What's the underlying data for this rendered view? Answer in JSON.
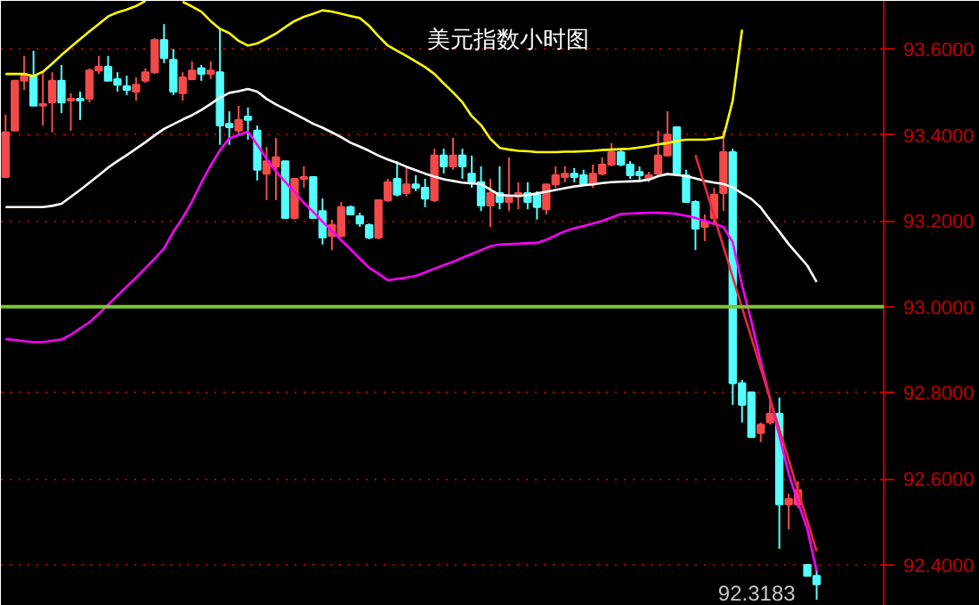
{
  "chart_data": {
    "type": "candlestick",
    "title": "美元指数小时图",
    "categories": [
      null,
      null,
      null,
      null,
      null,
      null,
      null,
      null,
      null,
      null,
      null,
      null,
      null,
      null,
      null,
      null,
      null,
      null,
      null,
      null,
      null,
      null,
      null,
      null,
      null,
      null,
      null,
      null,
      null,
      null,
      null,
      null,
      null,
      null,
      null,
      null,
      null,
      null,
      null,
      null,
      null,
      null,
      null,
      null,
      null,
      null,
      null,
      null,
      null,
      null,
      null,
      null,
      null,
      null,
      null,
      null,
      null,
      null,
      null,
      null,
      null,
      null,
      null,
      null,
      null,
      null,
      null,
      null,
      null,
      null,
      null,
      null,
      null,
      null,
      null,
      null,
      null,
      null,
      null,
      null,
      null,
      null,
      null,
      null,
      null,
      null,
      null,
      null
    ],
    "ohlc": [
      [
        93.302,
        93.447,
        93.302,
        93.406
      ],
      [
        93.41,
        93.526,
        93.41,
        93.526
      ],
      [
        93.526,
        93.584,
        93.505,
        93.538
      ],
      [
        93.538,
        93.596,
        93.468,
        93.468
      ],
      [
        93.468,
        93.546,
        93.422,
        93.472
      ],
      [
        93.476,
        93.546,
        93.406,
        93.526
      ],
      [
        93.526,
        93.563,
        93.451,
        93.476
      ],
      [
        93.48,
        93.497,
        93.41,
        93.484
      ],
      [
        93.484,
        93.501,
        93.435,
        93.48
      ],
      [
        93.484,
        93.555,
        93.476,
        93.55
      ],
      [
        93.55,
        93.584,
        93.542,
        93.559
      ],
      [
        93.559,
        93.584,
        93.526,
        93.526
      ],
      [
        93.53,
        93.546,
        93.501,
        93.517
      ],
      [
        93.513,
        93.538,
        93.493,
        93.505
      ],
      [
        93.501,
        93.534,
        93.48,
        93.517
      ],
      [
        93.526,
        93.555,
        93.521,
        93.546
      ],
      [
        93.546,
        93.625,
        93.542,
        93.621
      ],
      [
        93.621,
        93.658,
        93.567,
        93.579
      ],
      [
        93.575,
        93.6,
        93.493,
        93.501
      ],
      [
        93.497,
        93.546,
        93.48,
        93.534
      ],
      [
        93.53,
        93.571,
        93.53,
        93.55
      ],
      [
        93.555,
        93.563,
        93.526,
        93.542
      ],
      [
        93.542,
        93.571,
        93.53,
        93.55
      ],
      [
        93.546,
        93.646,
        93.377,
        93.422
      ],
      [
        93.426,
        93.455,
        93.377,
        93.418
      ],
      [
        93.41,
        93.468,
        93.401,
        93.435
      ],
      [
        93.443,
        93.464,
        93.389,
        93.435
      ],
      [
        93.41,
        93.422,
        93.294,
        93.319
      ],
      [
        93.31,
        93.372,
        93.248,
        93.339
      ],
      [
        93.327,
        93.393,
        93.248,
        93.348
      ],
      [
        93.339,
        93.339,
        93.207,
        93.207
      ],
      [
        93.207,
        93.298,
        93.203,
        93.298
      ],
      [
        93.298,
        93.327,
        93.277,
        93.302
      ],
      [
        93.302,
        93.302,
        93.207,
        93.207
      ],
      [
        93.223,
        93.252,
        93.145,
        93.161
      ],
      [
        93.165,
        93.203,
        93.132,
        93.19
      ],
      [
        93.165,
        93.244,
        93.161,
        93.232
      ],
      [
        93.232,
        93.236,
        93.215,
        93.215
      ],
      [
        93.211,
        93.219,
        93.186,
        93.194
      ],
      [
        93.19,
        93.194,
        93.157,
        93.161
      ],
      [
        93.161,
        93.248,
        93.157,
        93.248
      ],
      [
        93.248,
        93.298,
        93.244,
        93.29
      ],
      [
        93.298,
        93.339,
        93.257,
        93.261
      ],
      [
        93.265,
        93.327,
        93.257,
        93.285
      ],
      [
        93.285,
        93.306,
        93.269,
        93.277
      ],
      [
        93.277,
        93.298,
        93.232,
        93.252
      ],
      [
        93.248,
        93.368,
        93.244,
        93.352
      ],
      [
        93.352,
        93.368,
        93.31,
        93.327
      ],
      [
        93.327,
        93.393,
        93.319,
        93.352
      ],
      [
        93.352,
        93.368,
        93.298,
        93.327
      ],
      [
        93.31,
        93.352,
        93.277,
        93.29
      ],
      [
        93.29,
        93.327,
        93.223,
        93.236
      ],
      [
        93.236,
        93.298,
        93.186,
        93.265
      ],
      [
        93.265,
        93.327,
        93.227,
        93.244
      ],
      [
        93.244,
        93.348,
        93.223,
        93.257
      ],
      [
        93.257,
        93.29,
        93.227,
        93.265
      ],
      [
        93.265,
        93.29,
        93.227,
        93.244
      ],
      [
        93.261,
        93.269,
        93.203,
        93.232
      ],
      [
        93.227,
        93.285,
        93.215,
        93.285
      ],
      [
        93.285,
        93.327,
        93.277,
        93.306
      ],
      [
        93.302,
        93.327,
        93.29,
        93.31
      ],
      [
        93.31,
        93.323,
        93.29,
        93.302
      ],
      [
        93.306,
        93.319,
        93.285,
        93.285
      ],
      [
        93.285,
        93.331,
        93.277,
        93.31
      ],
      [
        93.31,
        93.348,
        93.306,
        93.331
      ],
      [
        93.331,
        93.381,
        93.327,
        93.36
      ],
      [
        93.36,
        93.368,
        93.327,
        93.331
      ],
      [
        93.331,
        93.339,
        93.298,
        93.306
      ],
      [
        93.314,
        93.327,
        93.29,
        93.306
      ],
      [
        93.298,
        93.314,
        93.29,
        93.306
      ],
      [
        93.31,
        93.41,
        93.306,
        93.352
      ],
      [
        93.352,
        93.455,
        93.352,
        93.401
      ],
      [
        93.418,
        93.418,
        93.31,
        93.31
      ],
      [
        93.306,
        93.319,
        93.244,
        93.244
      ],
      [
        93.244,
        93.248,
        93.132,
        93.182
      ],
      [
        93.186,
        93.215,
        93.153,
        93.199
      ],
      [
        93.207,
        93.277,
        93.194,
        93.261
      ],
      [
        93.265,
        93.41,
        93.223,
        93.36
      ],
      [
        93.36,
        93.368,
        92.772,
        92.822
      ],
      [
        92.822,
        92.83,
        92.731,
        92.772
      ],
      [
        92.801,
        92.801,
        92.697,
        92.697
      ],
      [
        92.706,
        92.731,
        92.685,
        92.726
      ],
      [
        92.731,
        92.793,
        92.726,
        92.751
      ],
      [
        92.751,
        92.789,
        92.437,
        92.54
      ],
      [
        92.54,
        92.565,
        92.482,
        92.553
      ],
      [
        92.54,
        92.594,
        92.532,
        92.573
      ],
      [
        92.399,
        92.399,
        92.374,
        92.374
      ],
      [
        92.374,
        92.387,
        92.3183,
        92.354
      ]
    ],
    "colors": [
      "#f24a4a",
      "#f24a4a",
      "#f24a4a",
      "#54ffff",
      "#f24a4a",
      "#f24a4a",
      "#54ffff",
      "#f24a4a",
      "#54ffff",
      "#f24a4a",
      "#f24a4a",
      "#54ffff",
      "#54ffff",
      "#54ffff",
      "#f24a4a",
      "#f24a4a",
      "#f24a4a",
      "#54ffff",
      "#54ffff",
      "#f24a4a",
      "#f24a4a",
      "#54ffff",
      "#f24a4a",
      "#54ffff",
      "#54ffff",
      "#f24a4a",
      "#54ffff",
      "#54ffff",
      "#f24a4a",
      "#f24a4a",
      "#54ffff",
      "#f24a4a",
      "#f24a4a",
      "#54ffff",
      "#54ffff",
      "#f24a4a",
      "#f24a4a",
      "#54ffff",
      "#54ffff",
      "#54ffff",
      "#f24a4a",
      "#f24a4a",
      "#54ffff",
      "#f24a4a",
      "#54ffff",
      "#54ffff",
      "#f24a4a",
      "#54ffff",
      "#f24a4a",
      "#54ffff",
      "#54ffff",
      "#54ffff",
      "#f24a4a",
      "#54ffff",
      "#f24a4a",
      "#f24a4a",
      "#54ffff",
      "#54ffff",
      "#f24a4a",
      "#f24a4a",
      "#f24a4a",
      "#54ffff",
      "#54ffff",
      "#f24a4a",
      "#f24a4a",
      "#f24a4a",
      "#54ffff",
      "#54ffff",
      "#54ffff",
      "#f24a4a",
      "#f24a4a",
      "#f24a4a",
      "#54ffff",
      "#54ffff",
      "#54ffff",
      "#f24a4a",
      "#f24a4a",
      "#f24a4a",
      "#54ffff",
      "#54ffff",
      "#54ffff",
      "#f24a4a",
      "#f24a4a",
      "#54ffff",
      "#f24a4a",
      "#f24a4a",
      "#54ffff",
      "#54ffff"
    ],
    "series": [
      {
        "type": "line",
        "color": "#ffff00",
        "values": [
          93.542,
          93.542,
          93.542,
          93.537,
          93.547,
          93.566,
          93.586,
          93.605,
          93.623,
          93.641,
          93.658,
          93.676,
          93.685,
          93.692,
          93.7,
          93.712,
          null,
          null,
          null,
          93.71,
          93.699,
          93.687,
          93.665,
          93.647,
          93.637,
          93.619,
          93.608,
          93.613,
          93.624,
          93.636,
          93.651,
          93.665,
          93.675,
          93.682,
          93.69,
          93.687,
          93.682,
          93.677,
          93.672,
          93.654,
          93.63,
          93.608,
          93.596,
          93.584,
          93.571,
          93.558,
          93.542,
          93.52,
          93.499,
          93.476,
          93.444,
          93.423,
          93.391,
          93.37,
          93.366,
          93.363,
          93.362,
          93.36,
          93.36,
          93.36,
          93.361,
          93.361,
          93.362,
          93.363,
          93.365,
          93.366,
          93.367,
          93.368,
          93.371,
          93.374,
          93.378,
          93.381,
          93.386,
          93.389,
          93.389,
          93.389,
          93.391,
          93.395,
          93.48,
          93.645,
          null,
          null,
          null,
          null,
          null,
          null,
          null,
          null
        ]
      },
      {
        "type": "line",
        "color": "#ffffff",
        "values": [
          93.232,
          93.232,
          93.232,
          93.232,
          93.232,
          93.235,
          93.24,
          93.256,
          93.272,
          93.289,
          93.306,
          93.324,
          93.339,
          93.353,
          93.368,
          93.383,
          93.399,
          93.414,
          93.425,
          93.436,
          93.446,
          93.458,
          93.472,
          93.487,
          93.498,
          93.502,
          93.507,
          93.501,
          93.484,
          93.471,
          93.46,
          93.449,
          93.438,
          93.426,
          93.417,
          93.406,
          93.395,
          93.382,
          93.373,
          93.363,
          93.352,
          93.343,
          93.335,
          93.326,
          93.318,
          93.31,
          93.303,
          93.297,
          93.293,
          93.289,
          93.287,
          93.286,
          93.273,
          93.26,
          93.259,
          93.258,
          93.26,
          93.264,
          93.268,
          93.272,
          93.276,
          93.28,
          93.283,
          93.285,
          93.288,
          93.29,
          93.291,
          93.292,
          93.293,
          93.296,
          93.304,
          93.309,
          93.307,
          93.304,
          93.299,
          93.293,
          93.289,
          93.286,
          93.278,
          93.264,
          93.251,
          93.231,
          93.202,
          93.175,
          93.146,
          93.121,
          93.096,
          93.058
        ]
      },
      {
        "type": "line",
        "color": "#ff00ff",
        "values": [
          92.925,
          92.923,
          92.92,
          92.918,
          92.918,
          92.921,
          92.924,
          92.935,
          92.95,
          92.964,
          92.984,
          93.005,
          93.026,
          93.047,
          93.068,
          93.09,
          93.112,
          93.136,
          93.175,
          93.207,
          93.245,
          93.289,
          93.329,
          93.365,
          93.392,
          93.4,
          93.408,
          93.377,
          93.344,
          93.315,
          93.291,
          93.267,
          93.242,
          93.221,
          93.198,
          93.177,
          93.155,
          93.134,
          93.112,
          93.091,
          93.077,
          93.062,
          93.065,
          93.068,
          93.072,
          93.08,
          93.089,
          93.097,
          93.105,
          93.114,
          93.123,
          93.132,
          93.141,
          93.145,
          93.146,
          93.147,
          93.148,
          93.149,
          93.156,
          93.166,
          93.176,
          93.183,
          93.188,
          93.194,
          93.2,
          93.208,
          93.216,
          93.217,
          93.218,
          93.219,
          93.219,
          93.218,
          93.216,
          93.212,
          93.207,
          93.2,
          93.193,
          93.186,
          93.15,
          93.05,
          92.966,
          92.872,
          92.786,
          92.7,
          92.611,
          92.545,
          92.483,
          92.384
        ]
      },
      {
        "type": "line",
        "color": "#e8283c",
        "values": [
          null,
          null,
          null,
          null,
          null,
          null,
          null,
          null,
          null,
          null,
          null,
          null,
          null,
          null,
          null,
          null,
          null,
          null,
          null,
          null,
          null,
          null,
          null,
          null,
          null,
          null,
          null,
          null,
          null,
          null,
          null,
          null,
          null,
          null,
          null,
          null,
          null,
          null,
          null,
          null,
          null,
          null,
          null,
          null,
          null,
          null,
          null,
          null,
          null,
          null,
          null,
          null,
          null,
          null,
          null,
          null,
          null,
          null,
          null,
          null,
          null,
          null,
          null,
          null,
          null,
          null,
          null,
          null,
          null,
          null,
          null,
          null,
          null,
          null,
          93.353,
          93.282,
          93.211,
          93.14,
          93.069,
          92.998,
          92.928,
          92.857,
          92.786,
          92.715,
          92.644,
          92.573,
          92.502,
          92.431
        ]
      }
    ],
    "ref_lines": [
      {
        "axis": "y",
        "value": 93.0,
        "color": "#7cc832"
      }
    ],
    "annotations": [
      "92.3183"
    ],
    "ylim": [
      92.304,
      93.712
    ],
    "yticks": [
      {
        "value": 92.4,
        "label": "92.4000"
      },
      {
        "value": 92.6,
        "label": "92.6000"
      },
      {
        "value": 92.8,
        "label": "92.8000"
      },
      {
        "value": 93.0,
        "label": "93.0000"
      },
      {
        "value": 93.2,
        "label": "93.2000"
      },
      {
        "value": 93.4,
        "label": "93.4000"
      },
      {
        "value": 93.6,
        "label": "93.6000"
      }
    ],
    "grid": "y",
    "tick_labels": "y"
  }
}
